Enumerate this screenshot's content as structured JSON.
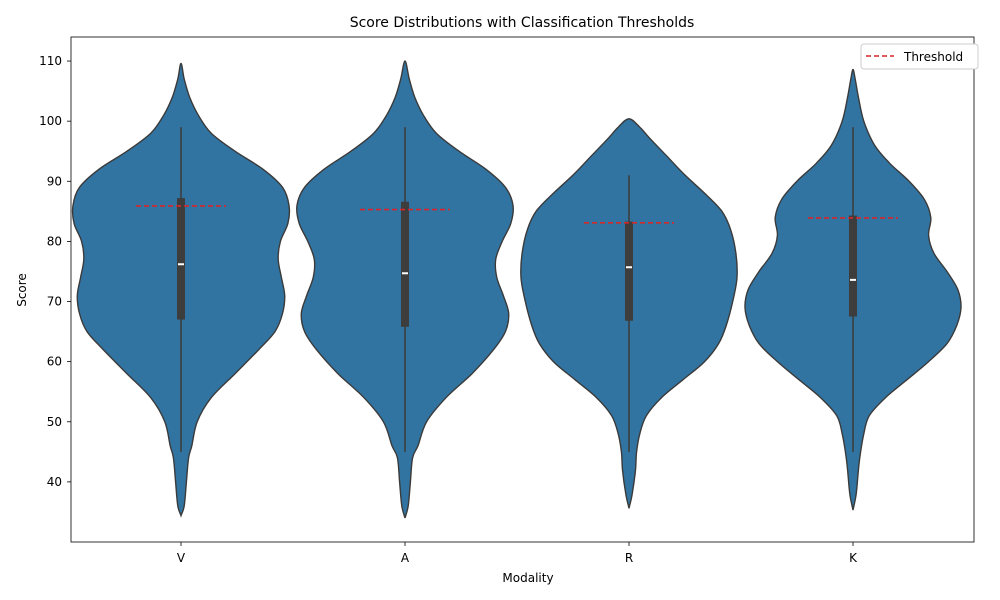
{
  "chart_data": {
    "type": "violin",
    "title": "Score Distributions with Classification Thresholds",
    "xlabel": "Modality",
    "ylabel": "Score",
    "ylim": [
      30,
      114
    ],
    "yticks": [
      40,
      50,
      60,
      70,
      80,
      90,
      100,
      110
    ],
    "grid": false,
    "legend": {
      "placement": "upper-right",
      "entries": [
        {
          "label": "Threshold",
          "style": "dashed",
          "color": "#d62728"
        }
      ]
    },
    "colors": {
      "violin": "#3274a1",
      "outline": "#3a3a3a",
      "box": "#3d3d3d",
      "median": "#ffffff",
      "threshold": "#d62728"
    },
    "categories": [
      "V",
      "A",
      "R",
      "K"
    ],
    "violins": [
      {
        "category": "V",
        "kde_min": 34.4,
        "kde_max": 109.6,
        "whisker_low": 45,
        "whisker_high": 99,
        "q1": 67,
        "median": 76.2,
        "q3": 87.2,
        "threshold": 85.9,
        "density": [
          [
            34.4,
            0
          ],
          [
            36,
            0.03
          ],
          [
            40,
            0.05
          ],
          [
            44,
            0.07
          ],
          [
            46,
            0.1
          ],
          [
            50,
            0.15
          ],
          [
            54,
            0.28
          ],
          [
            58,
            0.5
          ],
          [
            62,
            0.72
          ],
          [
            65,
            0.87
          ],
          [
            68,
            0.94
          ],
          [
            71,
            0.96
          ],
          [
            74,
            0.93
          ],
          [
            77,
            0.9
          ],
          [
            80,
            0.92
          ],
          [
            83,
            0.99
          ],
          [
            86,
            1.0
          ],
          [
            89,
            0.94
          ],
          [
            92,
            0.76
          ],
          [
            95,
            0.5
          ],
          [
            98,
            0.28
          ],
          [
            101,
            0.16
          ],
          [
            104,
            0.08
          ],
          [
            107,
            0.03
          ],
          [
            109.6,
            0
          ]
        ]
      },
      {
        "category": "A",
        "kde_min": 34.0,
        "kde_max": 110.0,
        "whisker_low": 45,
        "whisker_high": 99,
        "q1": 65.8,
        "median": 74.7,
        "q3": 86.6,
        "threshold": 85.3,
        "density": [
          [
            34,
            0
          ],
          [
            36,
            0.03
          ],
          [
            40,
            0.05
          ],
          [
            44,
            0.07
          ],
          [
            46,
            0.12
          ],
          [
            50,
            0.2
          ],
          [
            54,
            0.38
          ],
          [
            58,
            0.62
          ],
          [
            62,
            0.82
          ],
          [
            65,
            0.93
          ],
          [
            68,
            0.96
          ],
          [
            71,
            0.91
          ],
          [
            74,
            0.85
          ],
          [
            77,
            0.84
          ],
          [
            80,
            0.9
          ],
          [
            83,
            0.98
          ],
          [
            86,
            1.0
          ],
          [
            89,
            0.93
          ],
          [
            92,
            0.75
          ],
          [
            95,
            0.5
          ],
          [
            98,
            0.29
          ],
          [
            101,
            0.17
          ],
          [
            104,
            0.09
          ],
          [
            107,
            0.04
          ],
          [
            110,
            0
          ]
        ]
      },
      {
        "category": "R",
        "kde_min": 35.6,
        "kde_max": 100.4,
        "whisker_low": 45,
        "whisker_high": 91,
        "q1": 66.8,
        "median": 75.7,
        "q3": 83.3,
        "threshold": 83.1,
        "density": [
          [
            35.6,
            0
          ],
          [
            38,
            0.03
          ],
          [
            42,
            0.06
          ],
          [
            45,
            0.07
          ],
          [
            48,
            0.1
          ],
          [
            51,
            0.16
          ],
          [
            54,
            0.3
          ],
          [
            57,
            0.5
          ],
          [
            60,
            0.7
          ],
          [
            63,
            0.83
          ],
          [
            66,
            0.9
          ],
          [
            70,
            0.96
          ],
          [
            74,
            1.0
          ],
          [
            78,
            0.99
          ],
          [
            82,
            0.94
          ],
          [
            85,
            0.86
          ],
          [
            88,
            0.7
          ],
          [
            91,
            0.52
          ],
          [
            94,
            0.36
          ],
          [
            97,
            0.2
          ],
          [
            99,
            0.1
          ],
          [
            100.4,
            0
          ]
        ]
      },
      {
        "category": "K",
        "kde_min": 35.3,
        "kde_max": 108.6,
        "whisker_low": 45,
        "whisker_high": 99,
        "q1": 67.5,
        "median": 73.6,
        "q3": 84.3,
        "threshold": 83.9,
        "density": [
          [
            35.3,
            0
          ],
          [
            38,
            0.03
          ],
          [
            42,
            0.05
          ],
          [
            45,
            0.07
          ],
          [
            48,
            0.1
          ],
          [
            51,
            0.15
          ],
          [
            54,
            0.3
          ],
          [
            57,
            0.5
          ],
          [
            60,
            0.7
          ],
          [
            63,
            0.87
          ],
          [
            66,
            0.96
          ],
          [
            69,
            1.0
          ],
          [
            72,
            0.97
          ],
          [
            75,
            0.87
          ],
          [
            78,
            0.75
          ],
          [
            81,
            0.7
          ],
          [
            84,
            0.72
          ],
          [
            87,
            0.66
          ],
          [
            90,
            0.52
          ],
          [
            93,
            0.34
          ],
          [
            96,
            0.2
          ],
          [
            100,
            0.1
          ],
          [
            104,
            0.05
          ],
          [
            107,
            0.02
          ],
          [
            108.6,
            0
          ]
        ]
      }
    ]
  }
}
